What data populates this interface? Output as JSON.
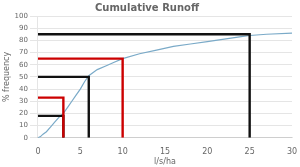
{
  "chart_data": {
    "type": "line",
    "title": "Cumulative Runoff",
    "xlabel": "l/s/ha",
    "ylabel": "% frequency",
    "xlim": [
      0,
      30
    ],
    "ylim": [
      0,
      100
    ],
    "xticks": [
      0,
      5,
      10,
      15,
      20,
      25,
      30
    ],
    "yticks": [
      0,
      10,
      20,
      30,
      40,
      50,
      60,
      70,
      80,
      90,
      100
    ],
    "grid": "y",
    "series": [
      {
        "color": "#7aaac8",
        "x": [
          0,
          0.3,
          0.6,
          1.0,
          1.5,
          2.0,
          2.5,
          3.0,
          3.5,
          4.0,
          4.5,
          5.0,
          5.5,
          6.0,
          7.0,
          8.0,
          9.0,
          10.0,
          12.0,
          14.0,
          16.0,
          18.0,
          20.0,
          22.0,
          24.0,
          25.0,
          27.0,
          30.0
        ],
        "values": [
          0,
          1,
          3,
          5,
          9,
          13,
          17,
          20,
          25,
          30,
          35,
          40,
          46,
          51,
          56,
          59,
          62,
          65,
          69,
          72,
          75,
          77,
          79,
          81,
          83,
          84,
          85,
          86
        ]
      },
      {
        "color": "#111111",
        "x": [
          0,
          3,
          3
        ],
        "values": [
          18,
          18,
          0
        ]
      },
      {
        "color": "#111111",
        "x": [
          0,
          6,
          6
        ],
        "values": [
          50,
          50,
          0
        ]
      },
      {
        "color": "#111111",
        "x": [
          0,
          25,
          25
        ],
        "values": [
          85,
          85,
          0
        ]
      },
      {
        "color": "#cc0000",
        "x": [
          0,
          3,
          3
        ],
        "values": [
          33,
          33,
          0
        ]
      },
      {
        "color": "#cc0000",
        "x": [
          0,
          10,
          10
        ],
        "values": [
          65,
          65,
          0
        ]
      }
    ]
  }
}
